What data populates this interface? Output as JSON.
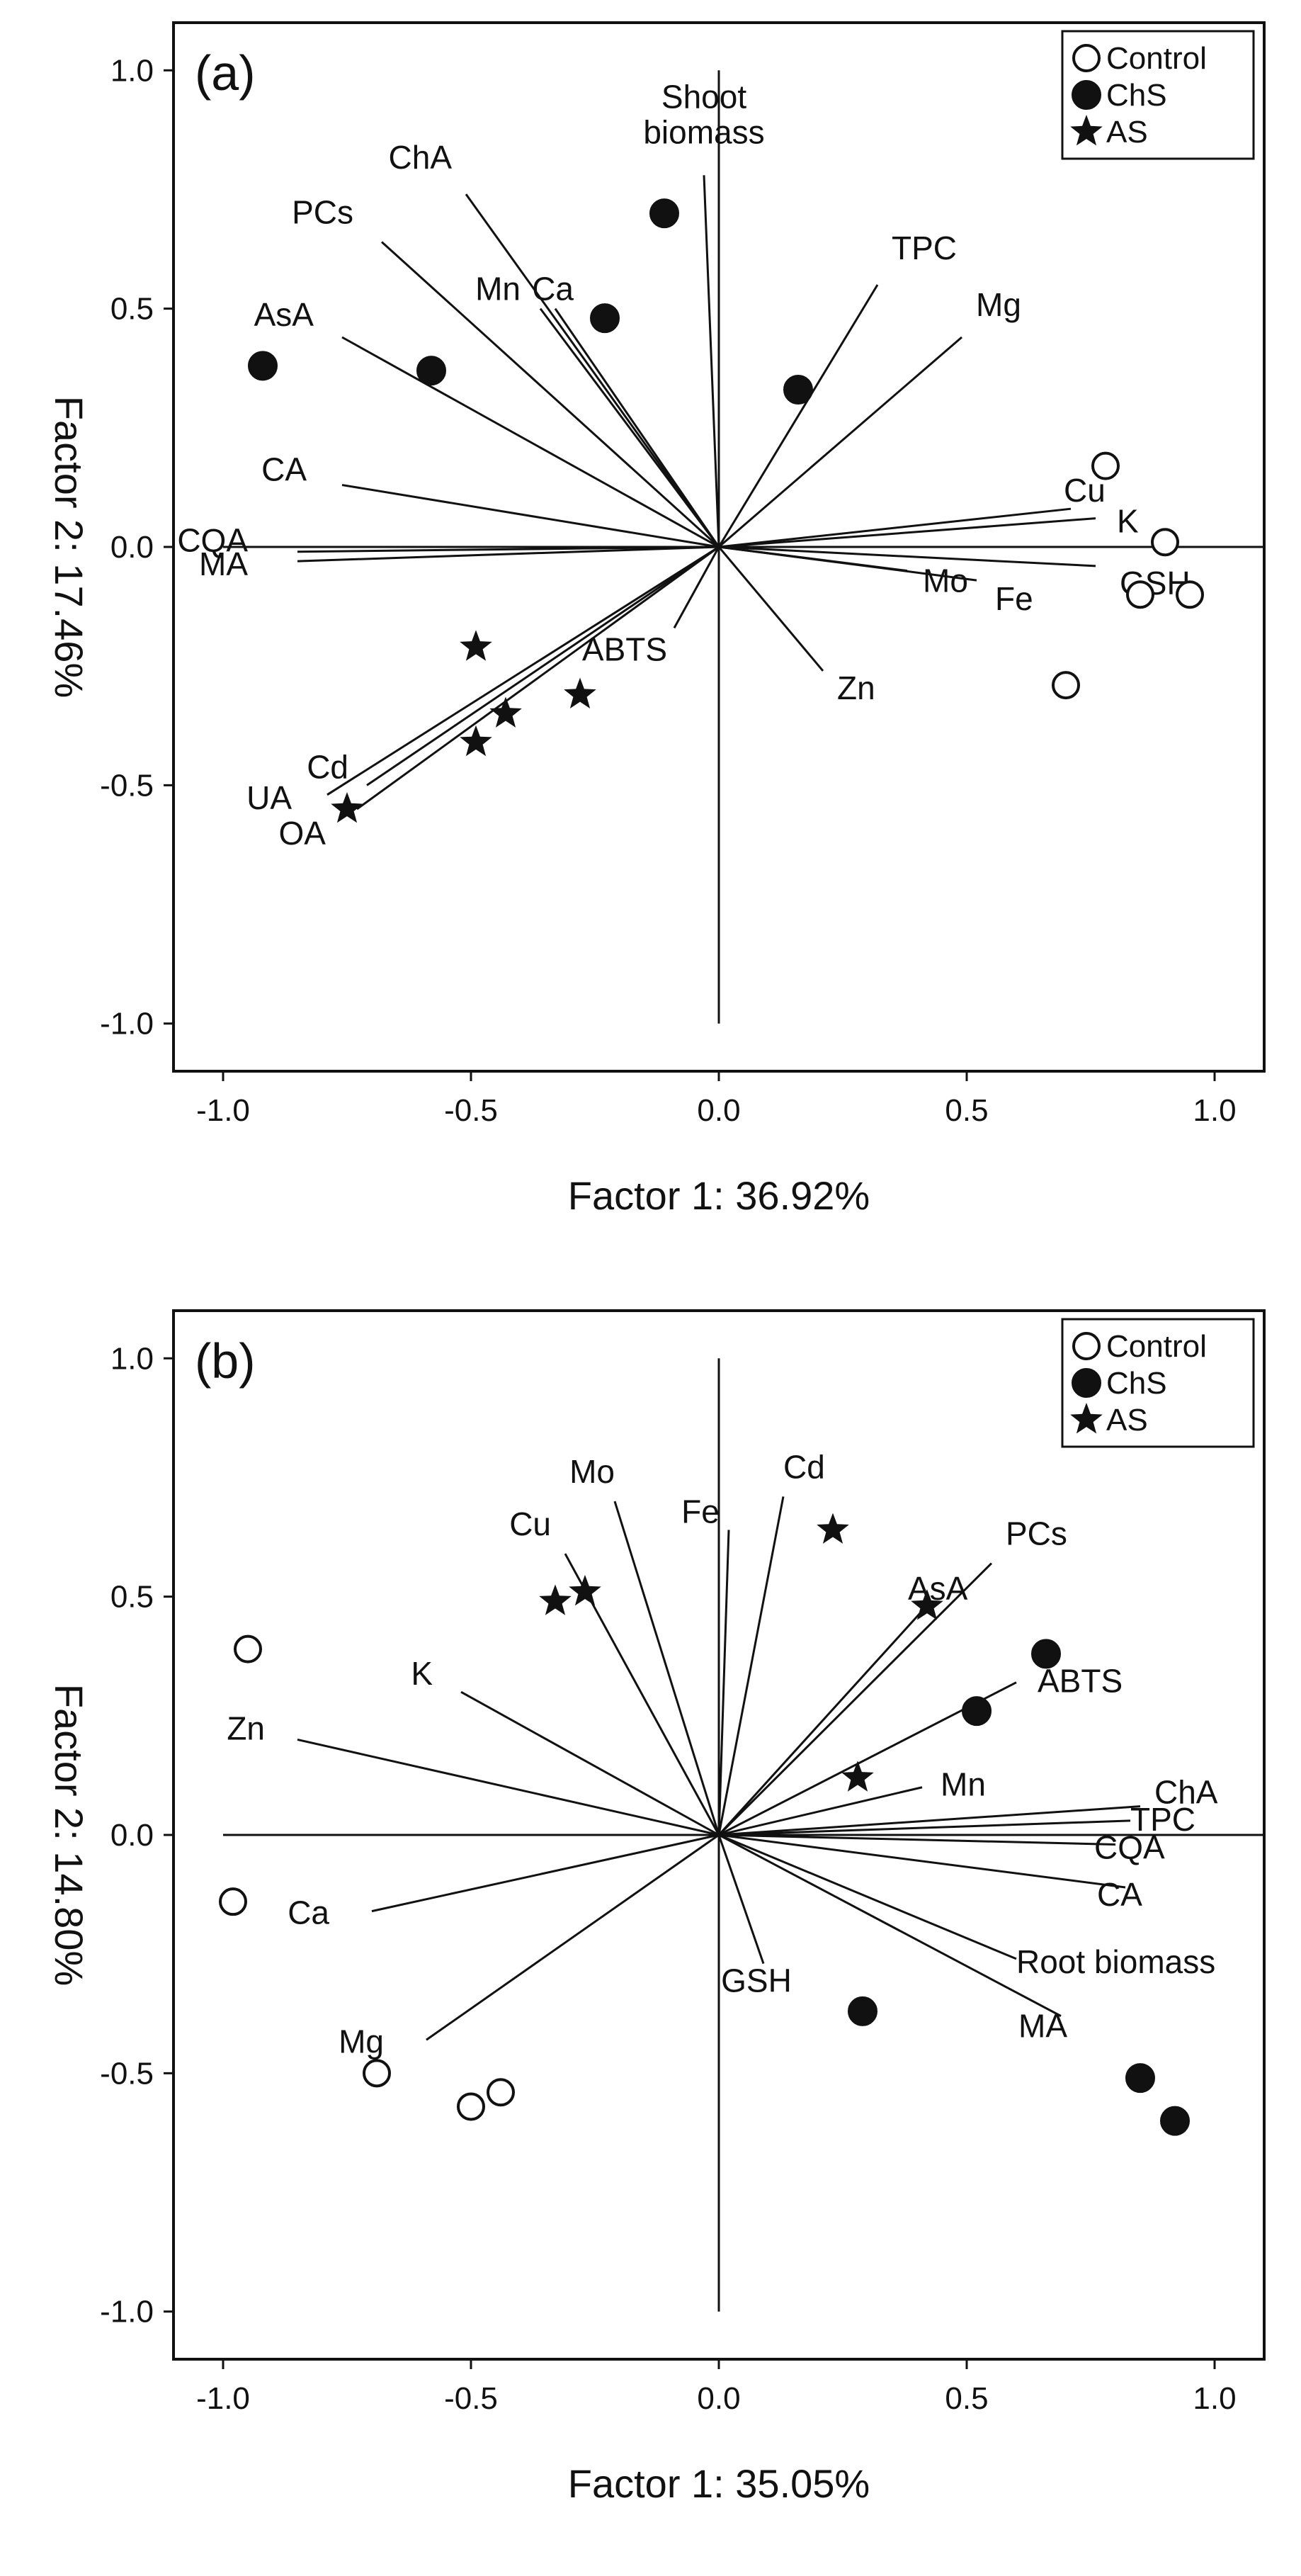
{
  "chart_data": [
    {
      "type": "scatter",
      "panel_label": "(a)",
      "xlabel": "Factor 1: 36.92%",
      "ylabel": "Factor 2: 17.46%",
      "xlim": [
        -1.1,
        1.1
      ],
      "ylim": [
        -1.1,
        1.1
      ],
      "xticks": [
        "-1.0",
        "-0.5",
        "0.0",
        "0.5",
        "1.0"
      ],
      "yticks": [
        "1.0",
        "0.5",
        "0.0",
        "-0.5",
        "-1.0"
      ],
      "legend": {
        "position": "top-right",
        "entries": [
          {
            "name": "Control",
            "marker": "open-circle"
          },
          {
            "name": "ChS",
            "marker": "filled-circle"
          },
          {
            "name": "AS",
            "marker": "star"
          }
        ]
      },
      "vectors": [
        {
          "label": "Shoot biomass",
          "x": -0.03,
          "y": 0.78
        },
        {
          "label": "ChA",
          "x": -0.51,
          "y": 0.74
        },
        {
          "label": "PCs",
          "x": -0.68,
          "y": 0.64
        },
        {
          "label": "Mn",
          "x": -0.36,
          "y": 0.5
        },
        {
          "label": "Ca",
          "x": -0.33,
          "y": 0.5
        },
        {
          "label": "AsA",
          "x": -0.76,
          "y": 0.44
        },
        {
          "label": "CA",
          "x": -0.76,
          "y": 0.13
        },
        {
          "label": "CQA",
          "x": -0.85,
          "y": -0.01
        },
        {
          "label": "MA",
          "x": -0.85,
          "y": -0.03
        },
        {
          "label": "Cd",
          "x": -0.71,
          "y": -0.5
        },
        {
          "label": "UA",
          "x": -0.79,
          "y": -0.52
        },
        {
          "label": "OA",
          "x": -0.73,
          "y": -0.55
        },
        {
          "label": "ABTS",
          "x": -0.09,
          "y": -0.17
        },
        {
          "label": "Zn",
          "x": 0.21,
          "y": -0.26
        },
        {
          "label": "TPC",
          "x": 0.32,
          "y": 0.55
        },
        {
          "label": "Mg",
          "x": 0.49,
          "y": 0.44
        },
        {
          "label": "Cu",
          "x": 0.71,
          "y": 0.08
        },
        {
          "label": "K",
          "x": 0.76,
          "y": 0.06
        },
        {
          "label": "Mo",
          "x": 0.38,
          "y": -0.05
        },
        {
          "label": "Fe",
          "x": 0.52,
          "y": -0.07
        },
        {
          "label": "GSH",
          "x": 0.76,
          "y": -0.04
        }
      ],
      "series": [
        {
          "name": "Control",
          "points": [
            [
              0.78,
              0.17
            ],
            [
              0.9,
              0.01
            ],
            [
              0.85,
              -0.1
            ],
            [
              0.95,
              -0.1
            ],
            [
              0.7,
              -0.29
            ]
          ]
        },
        {
          "name": "ChS",
          "points": [
            [
              -0.92,
              0.38
            ],
            [
              -0.58,
              0.37
            ],
            [
              -0.23,
              0.48
            ],
            [
              -0.11,
              0.7
            ],
            [
              0.16,
              0.33
            ]
          ]
        },
        {
          "name": "AS",
          "points": [
            [
              -0.49,
              -0.21
            ],
            [
              -0.28,
              -0.31
            ],
            [
              -0.43,
              -0.35
            ],
            [
              -0.49,
              -0.41
            ],
            [
              -0.75,
              -0.55
            ]
          ]
        }
      ]
    },
    {
      "type": "scatter",
      "panel_label": "(b)",
      "xlabel": "Factor 1: 35.05%",
      "ylabel": "Factor 2: 14.80%",
      "xlim": [
        -1.1,
        1.1
      ],
      "ylim": [
        -1.1,
        1.1
      ],
      "xticks": [
        "-1.0",
        "-0.5",
        "0.0",
        "0.5",
        "1.0"
      ],
      "yticks": [
        "1.0",
        "0.5",
        "0.0",
        "-0.5",
        "-1.0"
      ],
      "legend": {
        "position": "top-right",
        "entries": [
          {
            "name": "Control",
            "marker": "open-circle"
          },
          {
            "name": "ChS",
            "marker": "filled-circle"
          },
          {
            "name": "AS",
            "marker": "star"
          }
        ]
      },
      "vectors": [
        {
          "label": "Cu",
          "x": -0.31,
          "y": 0.59
        },
        {
          "label": "Mo",
          "x": -0.21,
          "y": 0.7
        },
        {
          "label": "Fe",
          "x": 0.02,
          "y": 0.64
        },
        {
          "label": "Cd",
          "x": 0.13,
          "y": 0.71
        },
        {
          "label": "PCs",
          "x": 0.55,
          "y": 0.57
        },
        {
          "label": "AsA",
          "x": 0.41,
          "y": 0.47
        },
        {
          "label": "ABTS",
          "x": 0.6,
          "y": 0.32
        },
        {
          "label": "Mn",
          "x": 0.41,
          "y": 0.1
        },
        {
          "label": "ChA",
          "x": 0.85,
          "y": 0.06
        },
        {
          "label": "TPC",
          "x": 0.83,
          "y": 0.03
        },
        {
          "label": "CQA",
          "x": 0.8,
          "y": -0.02
        },
        {
          "label": "CA",
          "x": 0.82,
          "y": -0.11
        },
        {
          "label": "Root biomass",
          "x": 0.6,
          "y": -0.26
        },
        {
          "label": "MA",
          "x": 0.69,
          "y": -0.38
        },
        {
          "label": "GSH",
          "x": 0.09,
          "y": -0.27
        },
        {
          "label": "K",
          "x": -0.52,
          "y": 0.3
        },
        {
          "label": "Zn",
          "x": -0.85,
          "y": 0.2
        },
        {
          "label": "Ca",
          "x": -0.7,
          "y": -0.16
        },
        {
          "label": "Mg",
          "x": -0.59,
          "y": -0.43
        }
      ],
      "series": [
        {
          "name": "Control",
          "points": [
            [
              -0.95,
              0.39
            ],
            [
              -0.98,
              -0.14
            ],
            [
              -0.69,
              -0.5
            ],
            [
              -0.5,
              -0.57
            ],
            [
              -0.44,
              -0.54
            ]
          ]
        },
        {
          "name": "ChS",
          "points": [
            [
              0.66,
              0.38
            ],
            [
              0.52,
              0.26
            ],
            [
              0.29,
              -0.37
            ],
            [
              0.85,
              -0.51
            ],
            [
              0.92,
              -0.6
            ]
          ]
        },
        {
          "name": "AS",
          "points": [
            [
              0.23,
              0.64
            ],
            [
              0.42,
              0.48
            ],
            [
              -0.27,
              0.51
            ],
            [
              -0.33,
              0.49
            ],
            [
              0.28,
              0.12
            ]
          ]
        }
      ]
    }
  ]
}
